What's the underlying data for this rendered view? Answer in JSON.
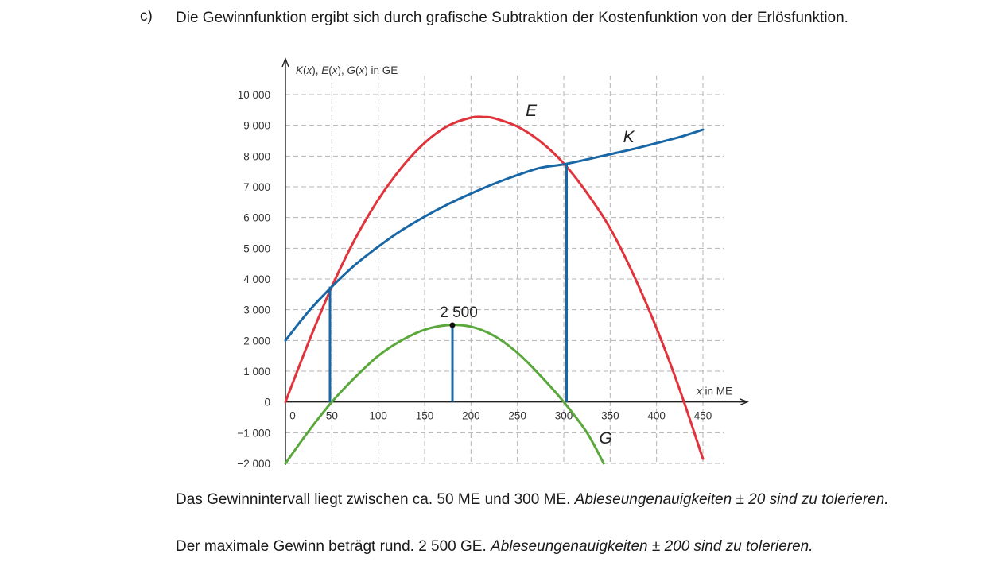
{
  "task": {
    "label": "c)",
    "text": "Die Gewinnfunktion ergibt sich durch grafische Subtraktion der Kostenfunktion von der Erlös­funktion."
  },
  "chart_data": {
    "type": "line",
    "ylabel_parts": [
      "K",
      "(",
      "x",
      "), ",
      "E",
      "(",
      "x",
      "), ",
      "G",
      "(",
      "x",
      ") in GE"
    ],
    "xlabel_parts": [
      "x",
      " in ME"
    ],
    "xlim": [
      0,
      450
    ],
    "ylim": [
      -2000,
      10000
    ],
    "grid": true,
    "x_ticks": [
      0,
      50,
      100,
      150,
      200,
      250,
      300,
      350,
      400,
      450
    ],
    "x_tick_labels": [
      "0",
      "50",
      "100",
      "150",
      "200",
      "250",
      "300",
      "350",
      "400",
      "450"
    ],
    "y_ticks": [
      -2000,
      -1000,
      0,
      1000,
      2000,
      3000,
      4000,
      5000,
      6000,
      7000,
      8000,
      9000,
      10000
    ],
    "y_tick_labels": [
      "−2 000",
      "−1 000",
      "0",
      "1 000",
      "2 000",
      "3 000",
      "4 000",
      "5 000",
      "6 000",
      "7 000",
      "8 000",
      "9 000",
      "10 000"
    ],
    "series": [
      {
        "name": "E",
        "color": "#e0333b",
        "x": [
          0,
          25,
          50,
          75,
          100,
          125,
          150,
          175,
          200,
          215,
          225,
          250,
          275,
          300,
          325,
          350,
          375,
          400,
          425,
          450
        ],
        "y": [
          0,
          1950,
          3750,
          5300,
          6580,
          7620,
          8430,
          8980,
          9250,
          9270,
          9230,
          8960,
          8470,
          7760,
          6800,
          5650,
          4150,
          2400,
          400,
          -1850
        ]
      },
      {
        "name": "K",
        "color": "#1a67a6",
        "x": [
          0,
          25,
          50,
          75,
          100,
          125,
          150,
          175,
          200,
          225,
          250,
          275,
          300,
          325,
          350,
          375,
          400,
          425,
          450
        ],
        "y": [
          2000,
          2950,
          3750,
          4460,
          5050,
          5580,
          6030,
          6430,
          6780,
          7100,
          7380,
          7620,
          7730,
          7890,
          8060,
          8230,
          8420,
          8620,
          8860
        ]
      },
      {
        "name": "G",
        "color": "#5aa83c",
        "x": [
          0,
          25,
          50,
          75,
          100,
          125,
          150,
          175,
          200,
          225,
          250,
          275,
          300,
          325,
          343
        ],
        "y": [
          -2000,
          -950,
          0,
          800,
          1500,
          2000,
          2350,
          2500,
          2450,
          2150,
          1600,
          850,
          0,
          -1000,
          -2000
        ]
      }
    ],
    "markers": [
      {
        "type": "vline",
        "x": 48,
        "y_from": 0,
        "y_to": 3750
      },
      {
        "type": "vline",
        "x": 303,
        "y_from": 0,
        "y_to": 7730
      },
      {
        "type": "vline",
        "x": 180,
        "y_from": 0,
        "y_to": 2500
      }
    ],
    "point": {
      "x": 180,
      "y": 2500
    },
    "annotation": "2 500",
    "curve_labels": [
      {
        "text": "E",
        "x": 265,
        "y": 9300
      },
      {
        "text": "K",
        "x": 370,
        "y": 8450
      },
      {
        "text": "G",
        "x": 345,
        "y": -1350
      }
    ]
  },
  "results": {
    "line1_normal": "Das Gewinnintervall liegt zwischen ca. 50 ME und 300 ME. ",
    "line1_italic": "Ableseungenauigkeiten ± 20 sind zu tolerieren.",
    "line2_normal": "Der maximale Gewinn beträgt rund. 2 500 GE. ",
    "line2_italic": "Ableseungenauigkeiten ± 200 sind zu tolerieren."
  }
}
